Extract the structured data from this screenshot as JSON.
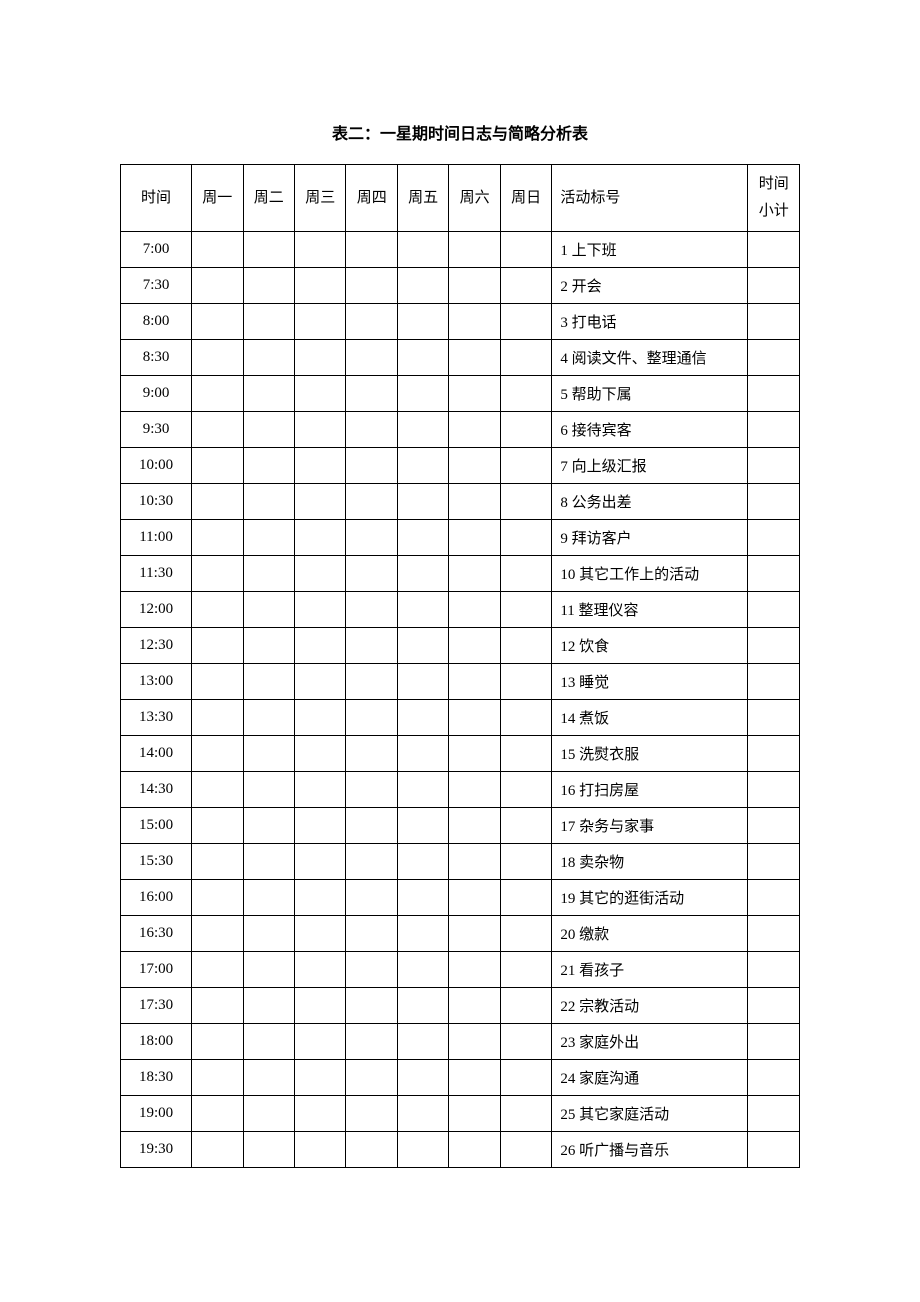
{
  "title": "表二：一星期时间日志与简略分析表",
  "table": {
    "type": "table",
    "header": {
      "time": "时间",
      "days": [
        "周一",
        "周二",
        "周三",
        "周四",
        "周五",
        "周六",
        "周日"
      ],
      "activity": "活动标号",
      "subtotal_line1": "时间",
      "subtotal_line2": "小计"
    },
    "column_widths": {
      "time": 58,
      "day": 42,
      "activity": 160,
      "subtotal": 42
    },
    "rows": [
      {
        "time": "7:00",
        "activity": "1 上下班"
      },
      {
        "time": "7:30",
        "activity": "2 开会"
      },
      {
        "time": "8:00",
        "activity": "3 打电话"
      },
      {
        "time": "8:30",
        "activity": "4 阅读文件、整理通信"
      },
      {
        "time": "9:00",
        "activity": "5 帮助下属"
      },
      {
        "time": "9:30",
        "activity": "6 接待宾客"
      },
      {
        "time": "10:00",
        "activity": "7 向上级汇报"
      },
      {
        "time": "10:30",
        "activity": "8 公务出差"
      },
      {
        "time": "11:00",
        "activity": "9 拜访客户"
      },
      {
        "time": "11:30",
        "activity": "10 其它工作上的活动"
      },
      {
        "time": "12:00",
        "activity": "11 整理仪容"
      },
      {
        "time": "12:30",
        "activity": "12 饮食"
      },
      {
        "time": "13:00",
        "activity": "13 睡觉"
      },
      {
        "time": "13:30",
        "activity": "14 煮饭"
      },
      {
        "time": "14:00",
        "activity": "15 洗熨衣服"
      },
      {
        "time": "14:30",
        "activity": "16 打扫房屋"
      },
      {
        "time": "15:00",
        "activity": "17 杂务与家事"
      },
      {
        "time": "15:30",
        "activity": "18 卖杂物"
      },
      {
        "time": "16:00",
        "activity": "19 其它的逛街活动"
      },
      {
        "time": "16:30",
        "activity": "20 缴款"
      },
      {
        "time": "17:00",
        "activity": "21 看孩子"
      },
      {
        "time": "17:30",
        "activity": "22 宗教活动"
      },
      {
        "time": "18:00",
        "activity": "23 家庭外出"
      },
      {
        "time": "18:30",
        "activity": "24 家庭沟通"
      },
      {
        "time": "19:00",
        "activity": "25 其它家庭活动"
      },
      {
        "time": "19:30",
        "activity": "26 听广播与音乐"
      }
    ],
    "border_color": "#000000",
    "background_color": "#ffffff",
    "font_size": 15
  }
}
